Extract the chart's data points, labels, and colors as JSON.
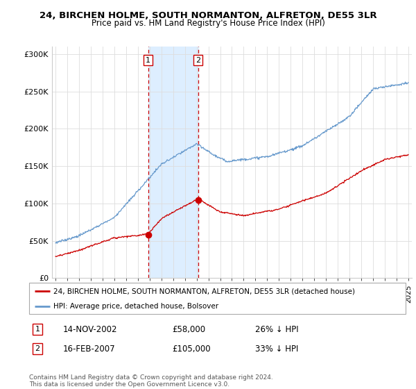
{
  "title": "24, BIRCHEN HOLME, SOUTH NORMANTON, ALFRETON, DE55 3LR",
  "subtitle": "Price paid vs. HM Land Registry's House Price Index (HPI)",
  "ylim": [
    0,
    310000
  ],
  "xlim_start": 1994.7,
  "xlim_end": 2025.3,
  "transaction1": {
    "date_num": 2002.87,
    "price": 58000,
    "label": "1",
    "date_str": "14-NOV-2002",
    "price_str": "£58,000",
    "pct_str": "26% ↓ HPI"
  },
  "transaction2": {
    "date_num": 2007.12,
    "price": 105000,
    "label": "2",
    "date_str": "16-FEB-2007",
    "price_str": "£105,000",
    "pct_str": "33% ↓ HPI"
  },
  "legend_label_red": "24, BIRCHEN HOLME, SOUTH NORMANTON, ALFRETON, DE55 3LR (detached house)",
  "legend_label_blue": "HPI: Average price, detached house, Bolsover",
  "footer": "Contains HM Land Registry data © Crown copyright and database right 2024.\nThis data is licensed under the Open Government Licence v3.0.",
  "red_color": "#cc0000",
  "blue_color": "#6699cc",
  "highlight_color": "#ddeeff",
  "shade_xstart1": 2002.87,
  "shade_xend1": 2007.12
}
